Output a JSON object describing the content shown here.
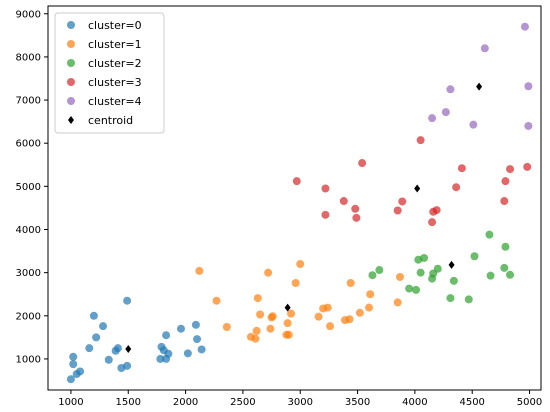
{
  "chart_data": {
    "type": "scatter",
    "title": "",
    "xlabel": "",
    "ylabel": "",
    "xlim": [
      800,
      5100
    ],
    "ylim": [
      280,
      9180
    ],
    "xticks": [
      1000,
      1500,
      2000,
      2500,
      3000,
      3500,
      4000,
      4500,
      5000
    ],
    "yticks": [
      1000,
      2000,
      3000,
      4000,
      5000,
      6000,
      7000,
      8000,
      9000
    ],
    "grid": false,
    "legend_position": "top-left",
    "series": [
      {
        "name": "cluster=0",
        "color": "#1f77b4",
        "marker": "circle",
        "points": [
          [
            1000,
            530
          ],
          [
            1020,
            1050
          ],
          [
            1020,
            880
          ],
          [
            1050,
            650
          ],
          [
            1080,
            710
          ],
          [
            1160,
            1250
          ],
          [
            1200,
            2000
          ],
          [
            1220,
            1500
          ],
          [
            1280,
            1760
          ],
          [
            1330,
            980
          ],
          [
            1390,
            1190
          ],
          [
            1410,
            1250
          ],
          [
            1440,
            790
          ],
          [
            1490,
            840
          ],
          [
            1490,
            2350
          ],
          [
            1780,
            1000
          ],
          [
            1790,
            1280
          ],
          [
            1810,
            1200
          ],
          [
            1830,
            1000
          ],
          [
            1830,
            1550
          ],
          [
            1850,
            1120
          ],
          [
            1960,
            1700
          ],
          [
            2020,
            1130
          ],
          [
            2090,
            1790
          ],
          [
            2100,
            1460
          ],
          [
            2140,
            1220
          ]
        ]
      },
      {
        "name": "cluster=1",
        "color": "#ff7f0e",
        "marker": "circle",
        "points": [
          [
            2120,
            3040
          ],
          [
            2270,
            2350
          ],
          [
            2360,
            1740
          ],
          [
            2570,
            1510
          ],
          [
            2610,
            1470
          ],
          [
            2620,
            1650
          ],
          [
            2630,
            2410
          ],
          [
            2650,
            2030
          ],
          [
            2720,
            3000
          ],
          [
            2740,
            1700
          ],
          [
            2750,
            1960
          ],
          [
            2760,
            1990
          ],
          [
            2880,
            1560
          ],
          [
            2890,
            1830
          ],
          [
            2900,
            1560
          ],
          [
            2920,
            2050
          ],
          [
            2960,
            2760
          ],
          [
            3000,
            3200
          ],
          [
            3160,
            1980
          ],
          [
            3200,
            2170
          ],
          [
            3240,
            2190
          ],
          [
            3260,
            1760
          ],
          [
            3390,
            1900
          ],
          [
            3430,
            1920
          ],
          [
            3440,
            2760
          ],
          [
            3520,
            2070
          ],
          [
            3600,
            2190
          ],
          [
            3610,
            2500
          ],
          [
            3850,
            2310
          ],
          [
            3870,
            2900
          ]
        ]
      },
      {
        "name": "cluster=2",
        "color": "#2ca02c",
        "marker": "circle",
        "points": [
          [
            3630,
            2940
          ],
          [
            3690,
            3060
          ],
          [
            3950,
            2630
          ],
          [
            4010,
            2600
          ],
          [
            4030,
            3300
          ],
          [
            4050,
            3000
          ],
          [
            4080,
            3340
          ],
          [
            4150,
            2860
          ],
          [
            4160,
            2980
          ],
          [
            4200,
            3090
          ],
          [
            4310,
            2410
          ],
          [
            4340,
            2810
          ],
          [
            4470,
            2380
          ],
          [
            4520,
            3380
          ],
          [
            4650,
            3880
          ],
          [
            4660,
            2930
          ],
          [
            4780,
            3110
          ],
          [
            4790,
            3600
          ],
          [
            4830,
            2950
          ]
        ]
      },
      {
        "name": "cluster=3",
        "color": "#d62728",
        "marker": "circle",
        "points": [
          [
            2970,
            5120
          ],
          [
            3220,
            4950
          ],
          [
            3220,
            4340
          ],
          [
            3380,
            4660
          ],
          [
            3480,
            4480
          ],
          [
            3490,
            4270
          ],
          [
            3540,
            5540
          ],
          [
            3850,
            4440
          ],
          [
            3890,
            4650
          ],
          [
            4050,
            6070
          ],
          [
            4150,
            4170
          ],
          [
            4160,
            4410
          ],
          [
            4190,
            4450
          ],
          [
            4360,
            4980
          ],
          [
            4410,
            5420
          ],
          [
            4780,
            4660
          ],
          [
            4790,
            5120
          ],
          [
            4830,
            5400
          ],
          [
            4980,
            5450
          ]
        ]
      },
      {
        "name": "cluster=4",
        "color": "#9467bd",
        "marker": "circle",
        "points": [
          [
            4150,
            6580
          ],
          [
            4270,
            6720
          ],
          [
            4310,
            7250
          ],
          [
            4510,
            6430
          ],
          [
            4610,
            8200
          ],
          [
            4960,
            8700
          ],
          [
            4990,
            7320
          ],
          [
            4990,
            6400
          ]
        ]
      },
      {
        "name": "centroid",
        "color": "#000000",
        "marker": "diamond",
        "points": [
          [
            1500,
            1230
          ],
          [
            2890,
            2190
          ],
          [
            4020,
            4950
          ],
          [
            4320,
            3180
          ],
          [
            4560,
            7310
          ]
        ]
      }
    ]
  }
}
